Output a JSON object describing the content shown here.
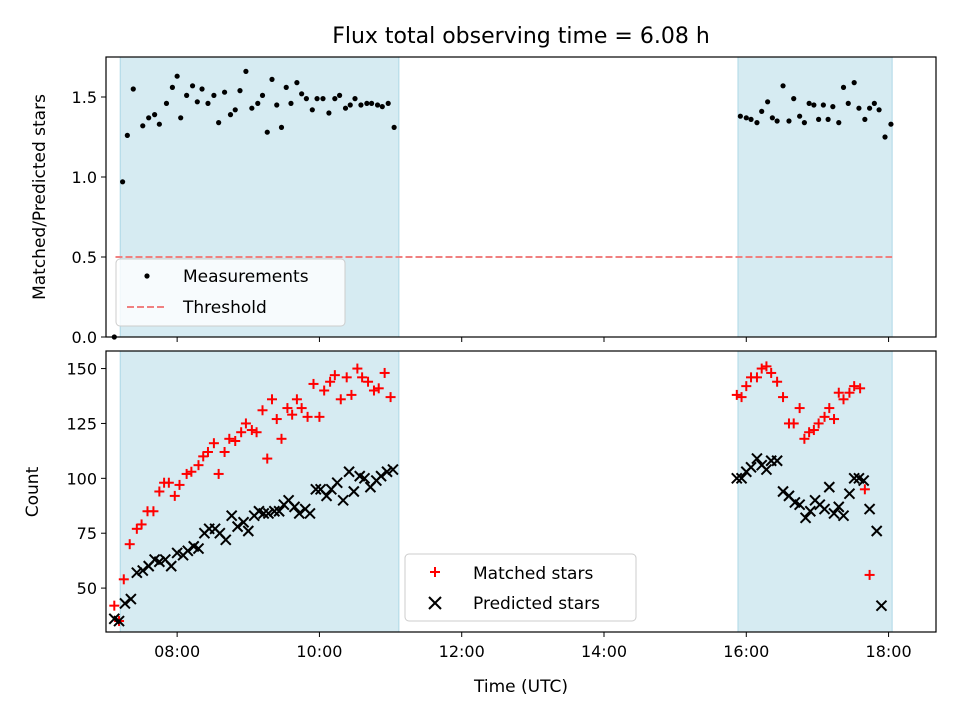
{
  "chart_data": [
    {
      "type": "scatter",
      "title": "Flux total observing time = 6.08 h",
      "xlabel": "",
      "ylabel": "Matched/Predicted stars",
      "xlim": [
        "07:00",
        "18:40"
      ],
      "ylim": [
        0,
        1.75
      ],
      "yticks": [
        "0.0",
        "0.5",
        "1.0",
        "1.5"
      ],
      "xticks": [
        "08:00",
        "10:00",
        "12:00",
        "14:00",
        "16:00",
        "18:00"
      ],
      "shaded_intervals": [
        [
          "07:12",
          "11:07"
        ],
        [
          "15:53",
          "18:03"
        ]
      ],
      "threshold": {
        "name": "Threshold",
        "value": 0.5,
        "color": "#f08080",
        "from": "07:08",
        "to": "18:03"
      },
      "legend_position": "lower left",
      "series": [
        {
          "name": "Measurements",
          "color": "#000000",
          "points": [
            [
              "07:07",
              0.0
            ],
            [
              "07:14",
              0.97
            ],
            [
              "07:18",
              1.26
            ],
            [
              "07:23",
              1.55
            ],
            [
              "07:31",
              1.32
            ],
            [
              "07:36",
              1.37
            ],
            [
              "07:41",
              1.39
            ],
            [
              "07:45",
              1.33
            ],
            [
              "07:51",
              1.46
            ],
            [
              "07:56",
              1.56
            ],
            [
              "08:00",
              1.63
            ],
            [
              "08:03",
              1.37
            ],
            [
              "08:08",
              1.51
            ],
            [
              "08:13",
              1.57
            ],
            [
              "08:17",
              1.47
            ],
            [
              "08:21",
              1.55
            ],
            [
              "08:26",
              1.46
            ],
            [
              "08:31",
              1.51
            ],
            [
              "08:35",
              1.34
            ],
            [
              "08:40",
              1.53
            ],
            [
              "08:45",
              1.39
            ],
            [
              "08:49",
              1.42
            ],
            [
              "08:53",
              1.54
            ],
            [
              "08:58",
              1.66
            ],
            [
              "09:03",
              1.43
            ],
            [
              "09:08",
              1.46
            ],
            [
              "09:12",
              1.51
            ],
            [
              "09:16",
              1.28
            ],
            [
              "09:20",
              1.61
            ],
            [
              "09:24",
              1.45
            ],
            [
              "09:28",
              1.31
            ],
            [
              "09:32",
              1.56
            ],
            [
              "09:36",
              1.46
            ],
            [
              "09:41",
              1.59
            ],
            [
              "09:45",
              1.52
            ],
            [
              "09:49",
              1.49
            ],
            [
              "09:54",
              1.42
            ],
            [
              "09:58",
              1.49
            ],
            [
              "10:03",
              1.49
            ],
            [
              "10:08",
              1.4
            ],
            [
              "10:13",
              1.49
            ],
            [
              "10:17",
              1.51
            ],
            [
              "10:22",
              1.43
            ],
            [
              "10:26",
              1.45
            ],
            [
              "10:30",
              1.49
            ],
            [
              "10:35",
              1.45
            ],
            [
              "10:40",
              1.46
            ],
            [
              "10:44",
              1.46
            ],
            [
              "10:49",
              1.45
            ],
            [
              "10:53",
              1.44
            ],
            [
              "10:58",
              1.46
            ],
            [
              "11:03",
              1.31
            ],
            [
              "15:55",
              1.38
            ],
            [
              "16:00",
              1.37
            ],
            [
              "16:04",
              1.36
            ],
            [
              "16:09",
              1.34
            ],
            [
              "16:13",
              1.41
            ],
            [
              "16:18",
              1.47
            ],
            [
              "16:22",
              1.37
            ],
            [
              "16:26",
              1.35
            ],
            [
              "16:31",
              1.57
            ],
            [
              "16:36",
              1.35
            ],
            [
              "16:40",
              1.49
            ],
            [
              "16:45",
              1.38
            ],
            [
              "16:49",
              1.34
            ],
            [
              "16:53",
              1.46
            ],
            [
              "16:57",
              1.45
            ],
            [
              "17:01",
              1.36
            ],
            [
              "17:05",
              1.45
            ],
            [
              "17:09",
              1.36
            ],
            [
              "17:13",
              1.44
            ],
            [
              "17:18",
              1.34
            ],
            [
              "17:22",
              1.56
            ],
            [
              "17:26",
              1.46
            ],
            [
              "17:31",
              1.59
            ],
            [
              "17:35",
              1.43
            ],
            [
              "17:40",
              1.36
            ],
            [
              "17:44",
              1.43
            ],
            [
              "17:48",
              1.46
            ],
            [
              "17:52",
              1.42
            ],
            [
              "17:57",
              1.25
            ],
            [
              "18:02",
              1.33
            ]
          ]
        }
      ]
    },
    {
      "type": "scatter",
      "title": "",
      "xlabel": "Time (UTC)",
      "ylabel": "Count",
      "xlim": [
        "07:00",
        "18:40"
      ],
      "ylim": [
        30,
        158
      ],
      "yticks": [
        "50",
        "75",
        "100",
        "125",
        "150"
      ],
      "xticks": [
        "08:00",
        "10:00",
        "12:00",
        "14:00",
        "16:00",
        "18:00"
      ],
      "shaded_intervals": [
        [
          "07:12",
          "11:07"
        ],
        [
          "15:53",
          "18:03"
        ]
      ],
      "legend_position": "lower center",
      "series": [
        {
          "name": "Matched stars",
          "color": "#ff0000",
          "marker": "+",
          "points": [
            [
              "07:07",
              42
            ],
            [
              "07:11",
              35
            ],
            [
              "07:15",
              54
            ],
            [
              "07:20",
              70
            ],
            [
              "07:26",
              77
            ],
            [
              "07:30",
              79
            ],
            [
              "07:35",
              85
            ],
            [
              "07:40",
              85
            ],
            [
              "07:45",
              94
            ],
            [
              "07:49",
              98
            ],
            [
              "07:53",
              98
            ],
            [
              "07:58",
              92
            ],
            [
              "08:02",
              97
            ],
            [
              "08:08",
              102
            ],
            [
              "08:12",
              103
            ],
            [
              "08:18",
              106
            ],
            [
              "08:22",
              110
            ],
            [
              "08:26",
              112
            ],
            [
              "08:31",
              116
            ],
            [
              "08:35",
              102
            ],
            [
              "08:40",
              112
            ],
            [
              "08:44",
              118
            ],
            [
              "08:49",
              117
            ],
            [
              "08:54",
              121
            ],
            [
              "08:58",
              125
            ],
            [
              "09:03",
              122
            ],
            [
              "09:07",
              121
            ],
            [
              "09:12",
              131
            ],
            [
              "09:16",
              109
            ],
            [
              "09:20",
              136
            ],
            [
              "09:24",
              127
            ],
            [
              "09:28",
              118
            ],
            [
              "09:33",
              132
            ],
            [
              "09:37",
              129
            ],
            [
              "09:41",
              136
            ],
            [
              "09:45",
              132
            ],
            [
              "09:50",
              128
            ],
            [
              "09:55",
              143
            ],
            [
              "10:00",
              128
            ],
            [
              "10:04",
              140
            ],
            [
              "10:09",
              144
            ],
            [
              "10:13",
              147
            ],
            [
              "10:18",
              136
            ],
            [
              "10:23",
              146
            ],
            [
              "10:27",
              138
            ],
            [
              "10:32",
              150
            ],
            [
              "10:36",
              146
            ],
            [
              "10:41",
              144
            ],
            [
              "10:46",
              140
            ],
            [
              "10:50",
              141
            ],
            [
              "10:55",
              148
            ],
            [
              "11:00",
              137
            ],
            [
              "15:52",
              138
            ],
            [
              "15:56",
              137
            ],
            [
              "16:00",
              142
            ],
            [
              "16:04",
              146
            ],
            [
              "16:09",
              146
            ],
            [
              "16:13",
              150
            ],
            [
              "16:17",
              151
            ],
            [
              "16:21",
              148
            ],
            [
              "16:26",
              144
            ],
            [
              "16:31",
              137
            ],
            [
              "16:36",
              125
            ],
            [
              "16:40",
              125
            ],
            [
              "16:45",
              132
            ],
            [
              "16:49",
              118
            ],
            [
              "16:53",
              121
            ],
            [
              "16:57",
              122
            ],
            [
              "17:01",
              125
            ],
            [
              "17:06",
              128
            ],
            [
              "17:10",
              132
            ],
            [
              "17:14",
              127
            ],
            [
              "17:18",
              139
            ],
            [
              "17:22",
              136
            ],
            [
              "17:27",
              139
            ],
            [
              "17:31",
              142
            ],
            [
              "17:36",
              141
            ],
            [
              "17:40",
              95
            ],
            [
              "17:44",
              56
            ]
          ]
        },
        {
          "name": "Predicted stars",
          "color": "#000000",
          "marker": "x",
          "points": [
            [
              "07:07",
              36
            ],
            [
              "07:11",
              35
            ],
            [
              "07:16",
              43
            ],
            [
              "07:21",
              45
            ],
            [
              "07:26",
              57
            ],
            [
              "07:31",
              58
            ],
            [
              "07:36",
              60
            ],
            [
              "07:41",
              63
            ],
            [
              "07:45",
              62
            ],
            [
              "07:50",
              63
            ],
            [
              "07:55",
              60
            ],
            [
              "08:00",
              66
            ],
            [
              "08:05",
              65
            ],
            [
              "08:09",
              67
            ],
            [
              "08:14",
              69
            ],
            [
              "08:18",
              68
            ],
            [
              "08:23",
              75
            ],
            [
              "08:27",
              77
            ],
            [
              "08:32",
              77
            ],
            [
              "08:36",
              75
            ],
            [
              "08:41",
              72
            ],
            [
              "08:46",
              83
            ],
            [
              "08:51",
              78
            ],
            [
              "08:56",
              80
            ],
            [
              "09:00",
              76
            ],
            [
              "09:05",
              83
            ],
            [
              "09:09",
              85
            ],
            [
              "09:13",
              84
            ],
            [
              "09:17",
              84
            ],
            [
              "09:22",
              85
            ],
            [
              "09:26",
              85
            ],
            [
              "09:30",
              88
            ],
            [
              "09:34",
              90
            ],
            [
              "09:39",
              87
            ],
            [
              "09:43",
              84
            ],
            [
              "09:48",
              86
            ],
            [
              "09:52",
              84
            ],
            [
              "09:57",
              95
            ],
            [
              "10:01",
              95
            ],
            [
              "10:06",
              92
            ],
            [
              "10:10",
              95
            ],
            [
              "10:15",
              98
            ],
            [
              "10:20",
              90
            ],
            [
              "10:25",
              103
            ],
            [
              "10:29",
              94
            ],
            [
              "10:34",
              101
            ],
            [
              "10:38",
              100
            ],
            [
              "10:43",
              96
            ],
            [
              "10:48",
              99
            ],
            [
              "10:52",
              101
            ],
            [
              "10:57",
              103
            ],
            [
              "11:02",
              104
            ],
            [
              "15:52",
              100
            ],
            [
              "15:56",
              100
            ],
            [
              "16:00",
              103
            ],
            [
              "16:04",
              105
            ],
            [
              "16:09",
              109
            ],
            [
              "16:13",
              106
            ],
            [
              "16:17",
              104
            ],
            [
              "16:21",
              108
            ],
            [
              "16:26",
              108
            ],
            [
              "16:31",
              94
            ],
            [
              "16:36",
              92
            ],
            [
              "16:41",
              89
            ],
            [
              "16:45",
              88
            ],
            [
              "16:50",
              82
            ],
            [
              "16:54",
              85
            ],
            [
              "16:58",
              90
            ],
            [
              "17:02",
              88
            ],
            [
              "17:06",
              86
            ],
            [
              "17:10",
              96
            ],
            [
              "17:14",
              84
            ],
            [
              "17:18",
              87
            ],
            [
              "17:22",
              83
            ],
            [
              "17:27",
              93
            ],
            [
              "17:31",
              100
            ],
            [
              "17:35",
              100
            ],
            [
              "17:39",
              99
            ],
            [
              "17:44",
              86
            ],
            [
              "17:50",
              76
            ],
            [
              "17:54",
              42
            ]
          ]
        }
      ]
    }
  ]
}
